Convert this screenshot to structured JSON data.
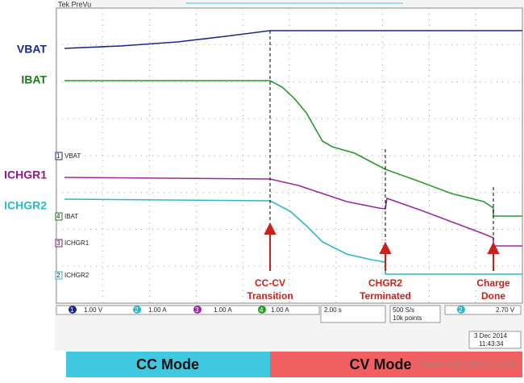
{
  "screen": {
    "header": "Tek PreVu",
    "side_labels": [
      "VBAT",
      "IBAT",
      "ICHGR1",
      "ICHGR2"
    ],
    "channel_markers": [
      {
        "number": "1",
        "label": "VBAT"
      },
      {
        "number": "4",
        "label": "IBAT"
      },
      {
        "number": "3",
        "label": "ICHGR1"
      },
      {
        "number": "2",
        "label": "ICHGR2"
      }
    ],
    "annotations": [
      [
        "CC-CV",
        "Transition"
      ],
      [
        "CHGR2",
        "Terminated"
      ],
      [
        "Charge",
        "Done"
      ]
    ],
    "status": {
      "channels": [
        {
          "number": "1",
          "scale": "1.00 V"
        },
        {
          "number": "2",
          "scale": "1.00 A"
        },
        {
          "number": "3",
          "scale": "1.00 A"
        },
        {
          "number": "4",
          "scale": "1.00 A"
        }
      ],
      "timebase": "2.00 s",
      "rate": "500 S/s",
      "points": "10k points",
      "trigger_channel": "2",
      "trigger_level": "2.70 V",
      "date": "3 Dec 2014",
      "time": "11:43:34"
    }
  },
  "modes": [
    "CC Mode",
    "CV Mode"
  ],
  "watermark": "www.cntronics.com"
}
